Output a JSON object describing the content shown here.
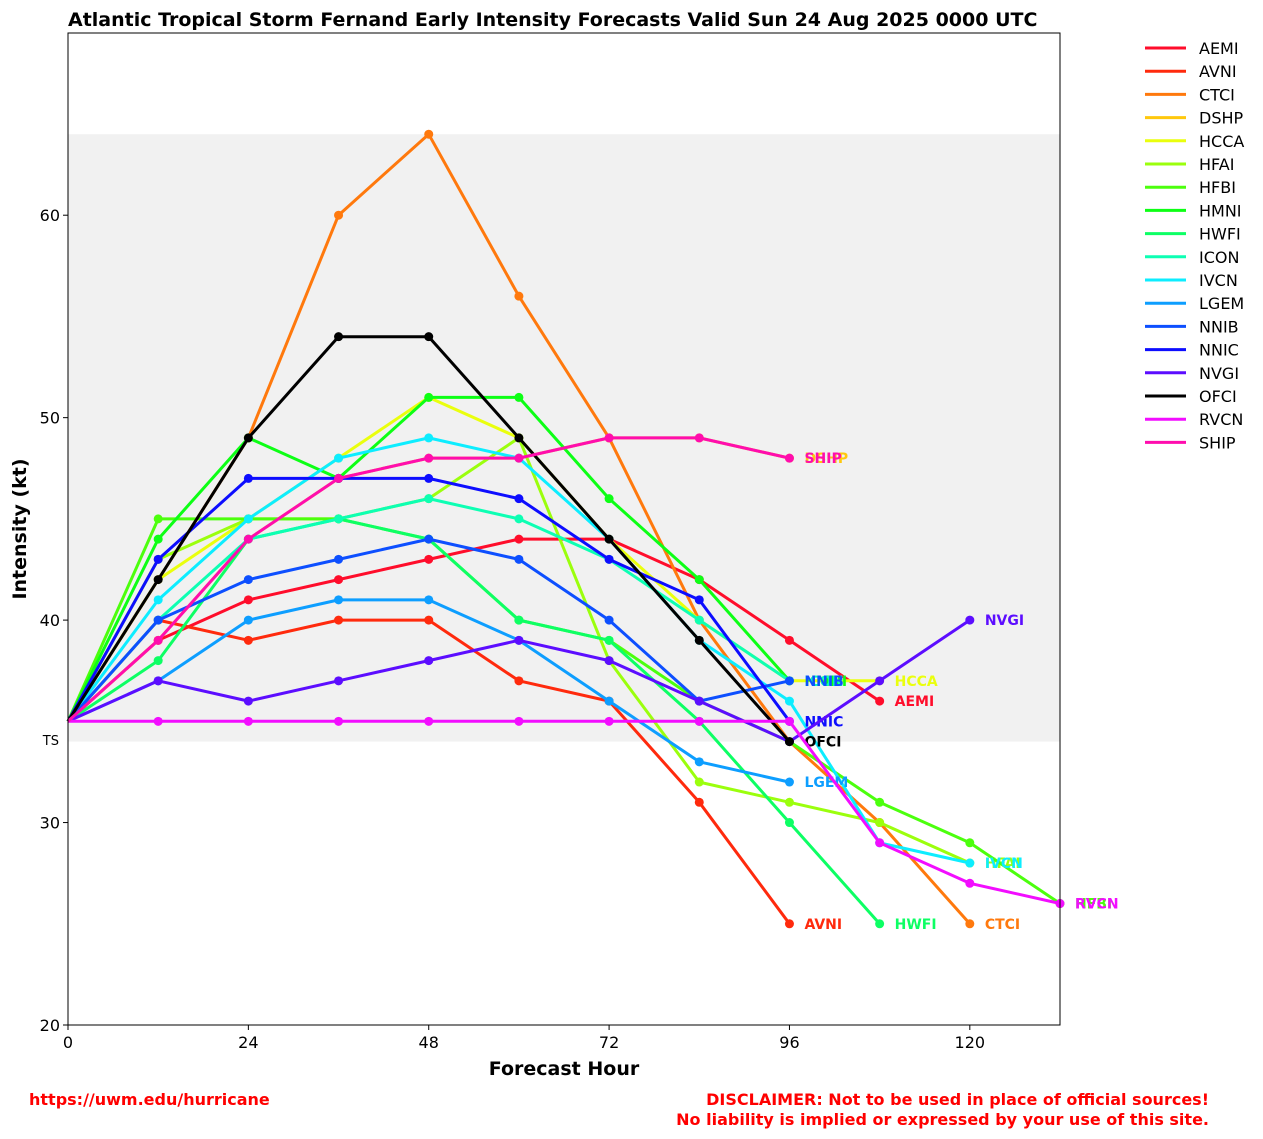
{
  "chart_data": {
    "type": "line",
    "title": "Atlantic Tropical Storm Fernand Early Intensity Forecasts Valid Sun 24 Aug 2025 0000 UTC",
    "xlabel": "Forecast Hour",
    "ylabel": "Intensity (kt)",
    "xlim": [
      0,
      132
    ],
    "ylim": [
      20,
      69
    ],
    "xticks": [
      0,
      24,
      48,
      72,
      96,
      120
    ],
    "yticks": [
      20,
      30,
      40,
      50,
      60
    ],
    "ts_band": {
      "label": "TS",
      "min": 34,
      "max": 64
    },
    "grid": false,
    "legend_position": "outside right",
    "series": [
      {
        "name": "AEMI",
        "color": "#ff0d2b",
        "x": [
          0,
          12,
          24,
          36,
          48,
          60,
          72,
          84,
          96,
          108
        ],
        "y": [
          35,
          39,
          41,
          42,
          43,
          44,
          44,
          42,
          39,
          36
        ]
      },
      {
        "name": "AVNI",
        "color": "#ff2a0d",
        "x": [
          0,
          12,
          24,
          36,
          48,
          60,
          72,
          84,
          96
        ],
        "y": [
          35,
          40,
          39,
          40,
          40,
          37,
          36,
          31,
          25
        ]
      },
      {
        "name": "CTCI",
        "color": "#ff790d",
        "x": [
          0,
          24,
          36,
          48,
          60,
          72,
          84,
          96,
          108,
          120
        ],
        "y": [
          35,
          49,
          60,
          64,
          56,
          49,
          40,
          34,
          30,
          25
        ]
      },
      {
        "name": "DSHP",
        "color": "#ffc80d",
        "x": [
          0,
          12,
          24,
          36,
          48,
          60,
          72,
          84,
          96
        ],
        "y": [
          35,
          39,
          44,
          47,
          48,
          48,
          49,
          49,
          48
        ]
      },
      {
        "name": "HCCA",
        "color": "#eaff0d",
        "x": [
          0,
          12,
          24,
          36,
          48,
          60,
          72,
          84,
          96,
          108
        ],
        "y": [
          35,
          42,
          45,
          48,
          51,
          49,
          44,
          40,
          37,
          37
        ]
      },
      {
        "name": "HFAI",
        "color": "#9bff0d",
        "x": [
          0,
          12,
          24,
          36,
          48,
          60,
          72,
          84,
          96,
          108,
          120
        ],
        "y": [
          35,
          43,
          45,
          45,
          46,
          49,
          38,
          32,
          31,
          30,
          28
        ]
      },
      {
        "name": "HFBI",
        "color": "#4cff0d",
        "x": [
          0,
          12,
          24,
          36,
          48,
          60,
          72,
          84,
          96,
          108,
          120,
          132
        ],
        "y": [
          35,
          45,
          45,
          45,
          44,
          40,
          39,
          36,
          34,
          31,
          29,
          26
        ]
      },
      {
        "name": "HMNI",
        "color": "#0dff15",
        "x": [
          0,
          12,
          24,
          36,
          48,
          60,
          72,
          84,
          96
        ],
        "y": [
          35,
          44,
          49,
          47,
          51,
          51,
          46,
          42,
          37
        ]
      },
      {
        "name": "HWFI",
        "color": "#0dff64",
        "x": [
          0,
          12,
          24,
          36,
          48,
          60,
          72,
          84,
          96,
          108
        ],
        "y": [
          35,
          38,
          44,
          45,
          44,
          40,
          39,
          35,
          30,
          25
        ]
      },
      {
        "name": "ICON",
        "color": "#0dffb3",
        "x": [
          0,
          12,
          24,
          36,
          48,
          60,
          72,
          84,
          96
        ],
        "y": [
          35,
          40,
          44,
          45,
          46,
          45,
          43,
          40,
          37
        ]
      },
      {
        "name": "IVCN",
        "color": "#0dedff",
        "x": [
          0,
          12,
          24,
          36,
          48,
          60,
          72,
          84,
          96,
          108,
          120
        ],
        "y": [
          35,
          41,
          45,
          48,
          49,
          48,
          44,
          39,
          36,
          29,
          28
        ]
      },
      {
        "name": "LGEM",
        "color": "#0d9eff",
        "x": [
          0,
          12,
          24,
          36,
          48,
          60,
          72,
          84,
          96
        ],
        "y": [
          35,
          37,
          40,
          41,
          41,
          39,
          36,
          33,
          32
        ]
      },
      {
        "name": "NNIB",
        "color": "#0d4fff",
        "x": [
          0,
          12,
          24,
          36,
          48,
          60,
          72,
          84,
          96
        ],
        "y": [
          35,
          40,
          42,
          43,
          44,
          43,
          40,
          36,
          37
        ]
      },
      {
        "name": "NNIC",
        "color": "#0d0dff",
        "x": [
          0,
          12,
          24,
          36,
          48,
          60,
          72,
          84,
          96
        ],
        "y": [
          35,
          43,
          47,
          47,
          47,
          46,
          43,
          41,
          35
        ]
      },
      {
        "name": "NVGI",
        "color": "#5c0dff",
        "x": [
          0,
          12,
          24,
          36,
          48,
          60,
          72,
          84,
          96,
          108,
          120
        ],
        "y": [
          35,
          37,
          36,
          37,
          38,
          39,
          38,
          36,
          34,
          37,
          40
        ]
      },
      {
        "name": "OFCI",
        "color": "#000000",
        "x": [
          0,
          12,
          24,
          36,
          48,
          60,
          72,
          84,
          96
        ],
        "y": [
          35,
          42,
          49,
          54,
          54,
          49,
          44,
          39,
          34
        ]
      },
      {
        "name": "RVCN",
        "color": "#f20dff",
        "x": [
          0,
          12,
          24,
          36,
          48,
          60,
          72,
          84,
          96,
          108,
          120,
          132
        ],
        "y": [
          35,
          35,
          35,
          35,
          35,
          35,
          35,
          35,
          35,
          29,
          27,
          26
        ]
      },
      {
        "name": "SHIP",
        "color": "#ff0dae",
        "x": [
          0,
          12,
          24,
          36,
          48,
          60,
          72,
          84,
          96
        ],
        "y": [
          35,
          39,
          44,
          47,
          48,
          48,
          49,
          49,
          48
        ]
      }
    ]
  },
  "footer": {
    "url": "https://uwm.edu/hurricane",
    "disclaimer_line1": "DISCLAIMER: Not to be used in place of official sources!",
    "disclaimer_line2": "No liability is implied or expressed by your use of this site."
  }
}
